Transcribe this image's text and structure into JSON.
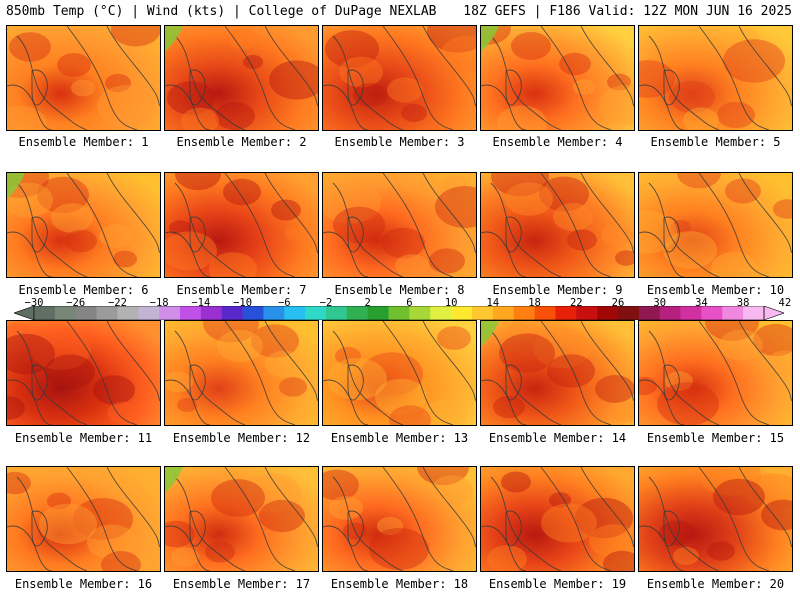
{
  "header": {
    "left": "850mb Temp (°C) | Wind (kts) | College of DuPage NEXLAB",
    "right": "18Z GEFS | F186 Valid: 12Z MON JUN 16 2025"
  },
  "colorbar": {
    "labels": [
      "-30",
      "-26",
      "-22",
      "-18",
      "-14",
      "-10",
      "-6",
      "-2",
      "2",
      "6",
      "10",
      "14",
      "18",
      "22",
      "26",
      "30",
      "34",
      "38",
      "42"
    ],
    "colors": [
      "#5f6f64",
      "#788778",
      "#858585",
      "#9b9b9b",
      "#b2b2b2",
      "#c4b4d4",
      "#d08ee8",
      "#c050e8",
      "#9a30d0",
      "#5a28c8",
      "#2850d8",
      "#2890e8",
      "#28c0f0",
      "#30d8c8",
      "#30c890",
      "#30b050",
      "#28a030",
      "#70c030",
      "#a8d838",
      "#e0f040",
      "#ffe830",
      "#ffc830",
      "#ffa820",
      "#ff8010",
      "#f85008",
      "#e82008",
      "#c81010",
      "#a00808",
      "#801010",
      "#901850",
      "#b82080",
      "#d030a0",
      "#e850c8",
      "#f088e0",
      "#f8b8f0"
    ]
  },
  "panels": [
    {
      "label": "Ensemble Member: 1",
      "palette": [
        "#d83010",
        "#ff8020",
        "#ff9a30",
        "#ffb030"
      ]
    },
    {
      "label": "Ensemble Member: 2",
      "palette": [
        "#b81810",
        "#e84a18",
        "#ff7a20",
        "#ff9a30"
      ]
    },
    {
      "label": "Ensemble Member: 3",
      "palette": [
        "#c02010",
        "#e84a18",
        "#ff7820",
        "#ffa030"
      ]
    },
    {
      "label": "Ensemble Member: 4",
      "palette": [
        "#d83010",
        "#ff7020",
        "#ffa030",
        "#ffd040"
      ]
    },
    {
      "label": "Ensemble Member: 5",
      "palette": [
        "#e04018",
        "#ff8020",
        "#ffa830",
        "#ffc838"
      ]
    },
    {
      "label": "Ensemble Member: 6",
      "palette": [
        "#d83010",
        "#ff7a20",
        "#ffa030",
        "#ffc030"
      ]
    },
    {
      "label": "Ensemble Member: 7",
      "palette": [
        "#b81810",
        "#e84418",
        "#ff7a20",
        "#ffa030"
      ]
    },
    {
      "label": "Ensemble Member: 8",
      "palette": [
        "#d02c10",
        "#ff6a20",
        "#ff9a30",
        "#ffb030"
      ]
    },
    {
      "label": "Ensemble Member: 9",
      "palette": [
        "#c82410",
        "#f05818",
        "#ff8a28",
        "#ffc038"
      ]
    },
    {
      "label": "Ensemble Member: 10",
      "palette": [
        "#e04018",
        "#ff8020",
        "#ffa830",
        "#ffc030"
      ]
    },
    {
      "label": "Ensemble Member: 11",
      "palette": [
        "#a81410",
        "#d83010",
        "#ff6020",
        "#ff9030"
      ]
    },
    {
      "label": "Ensemble Member: 12",
      "palette": [
        "#e04018",
        "#ff8020",
        "#ffa830",
        "#ffc030"
      ]
    },
    {
      "label": "Ensemble Member: 13",
      "palette": [
        "#e84a18",
        "#ff9020",
        "#ffb030",
        "#ffd040"
      ]
    },
    {
      "label": "Ensemble Member: 14",
      "palette": [
        "#c82410",
        "#f05818",
        "#ff9028",
        "#ffc038"
      ]
    },
    {
      "label": "Ensemble Member: 15",
      "palette": [
        "#d83010",
        "#ff7020",
        "#ffa030",
        "#ffc030"
      ]
    },
    {
      "label": "Ensemble Member: 16",
      "palette": [
        "#d83010",
        "#ff7a20",
        "#ffa030",
        "#ffb030"
      ]
    },
    {
      "label": "Ensemble Member: 17",
      "palette": [
        "#d02c10",
        "#ff7020",
        "#ffa030",
        "#ffc038"
      ]
    },
    {
      "label": "Ensemble Member: 18",
      "palette": [
        "#d02c10",
        "#ff6a20",
        "#ffa030",
        "#ffc038"
      ]
    },
    {
      "label": "Ensemble Member: 19",
      "palette": [
        "#b81810",
        "#e84418",
        "#ff8020",
        "#ffa830"
      ]
    },
    {
      "label": "Ensemble Member: 20",
      "palette": [
        "#b81810",
        "#e04018",
        "#ff8020",
        "#ffb030"
      ]
    }
  ]
}
